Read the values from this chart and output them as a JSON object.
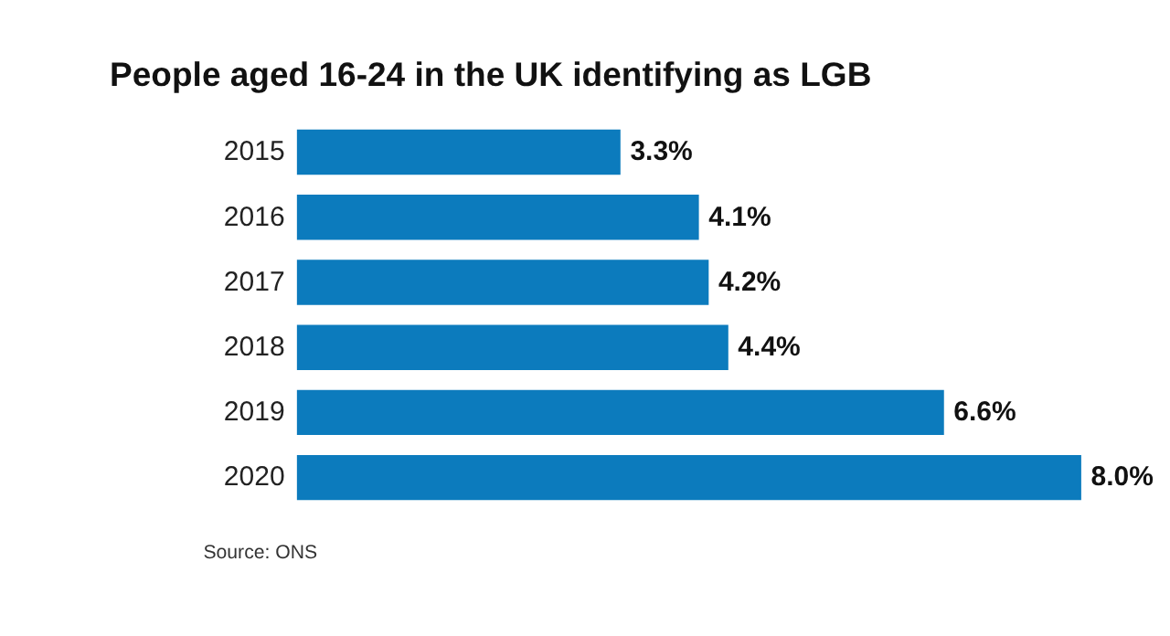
{
  "chart_data": {
    "type": "bar",
    "orientation": "horizontal",
    "title": "People aged 16-24 in the UK identifying as LGB",
    "categories": [
      "2015",
      "2016",
      "2017",
      "2018",
      "2019",
      "2020"
    ],
    "values": [
      3.3,
      4.1,
      4.2,
      4.4,
      6.6,
      8.0
    ],
    "value_labels": [
      "3.3%",
      "4.1%",
      "4.2%",
      "4.4%",
      "6.6%",
      "8.0%"
    ],
    "color": "#0c7bbd",
    "annotations": [
      "Source: ONS"
    ]
  }
}
